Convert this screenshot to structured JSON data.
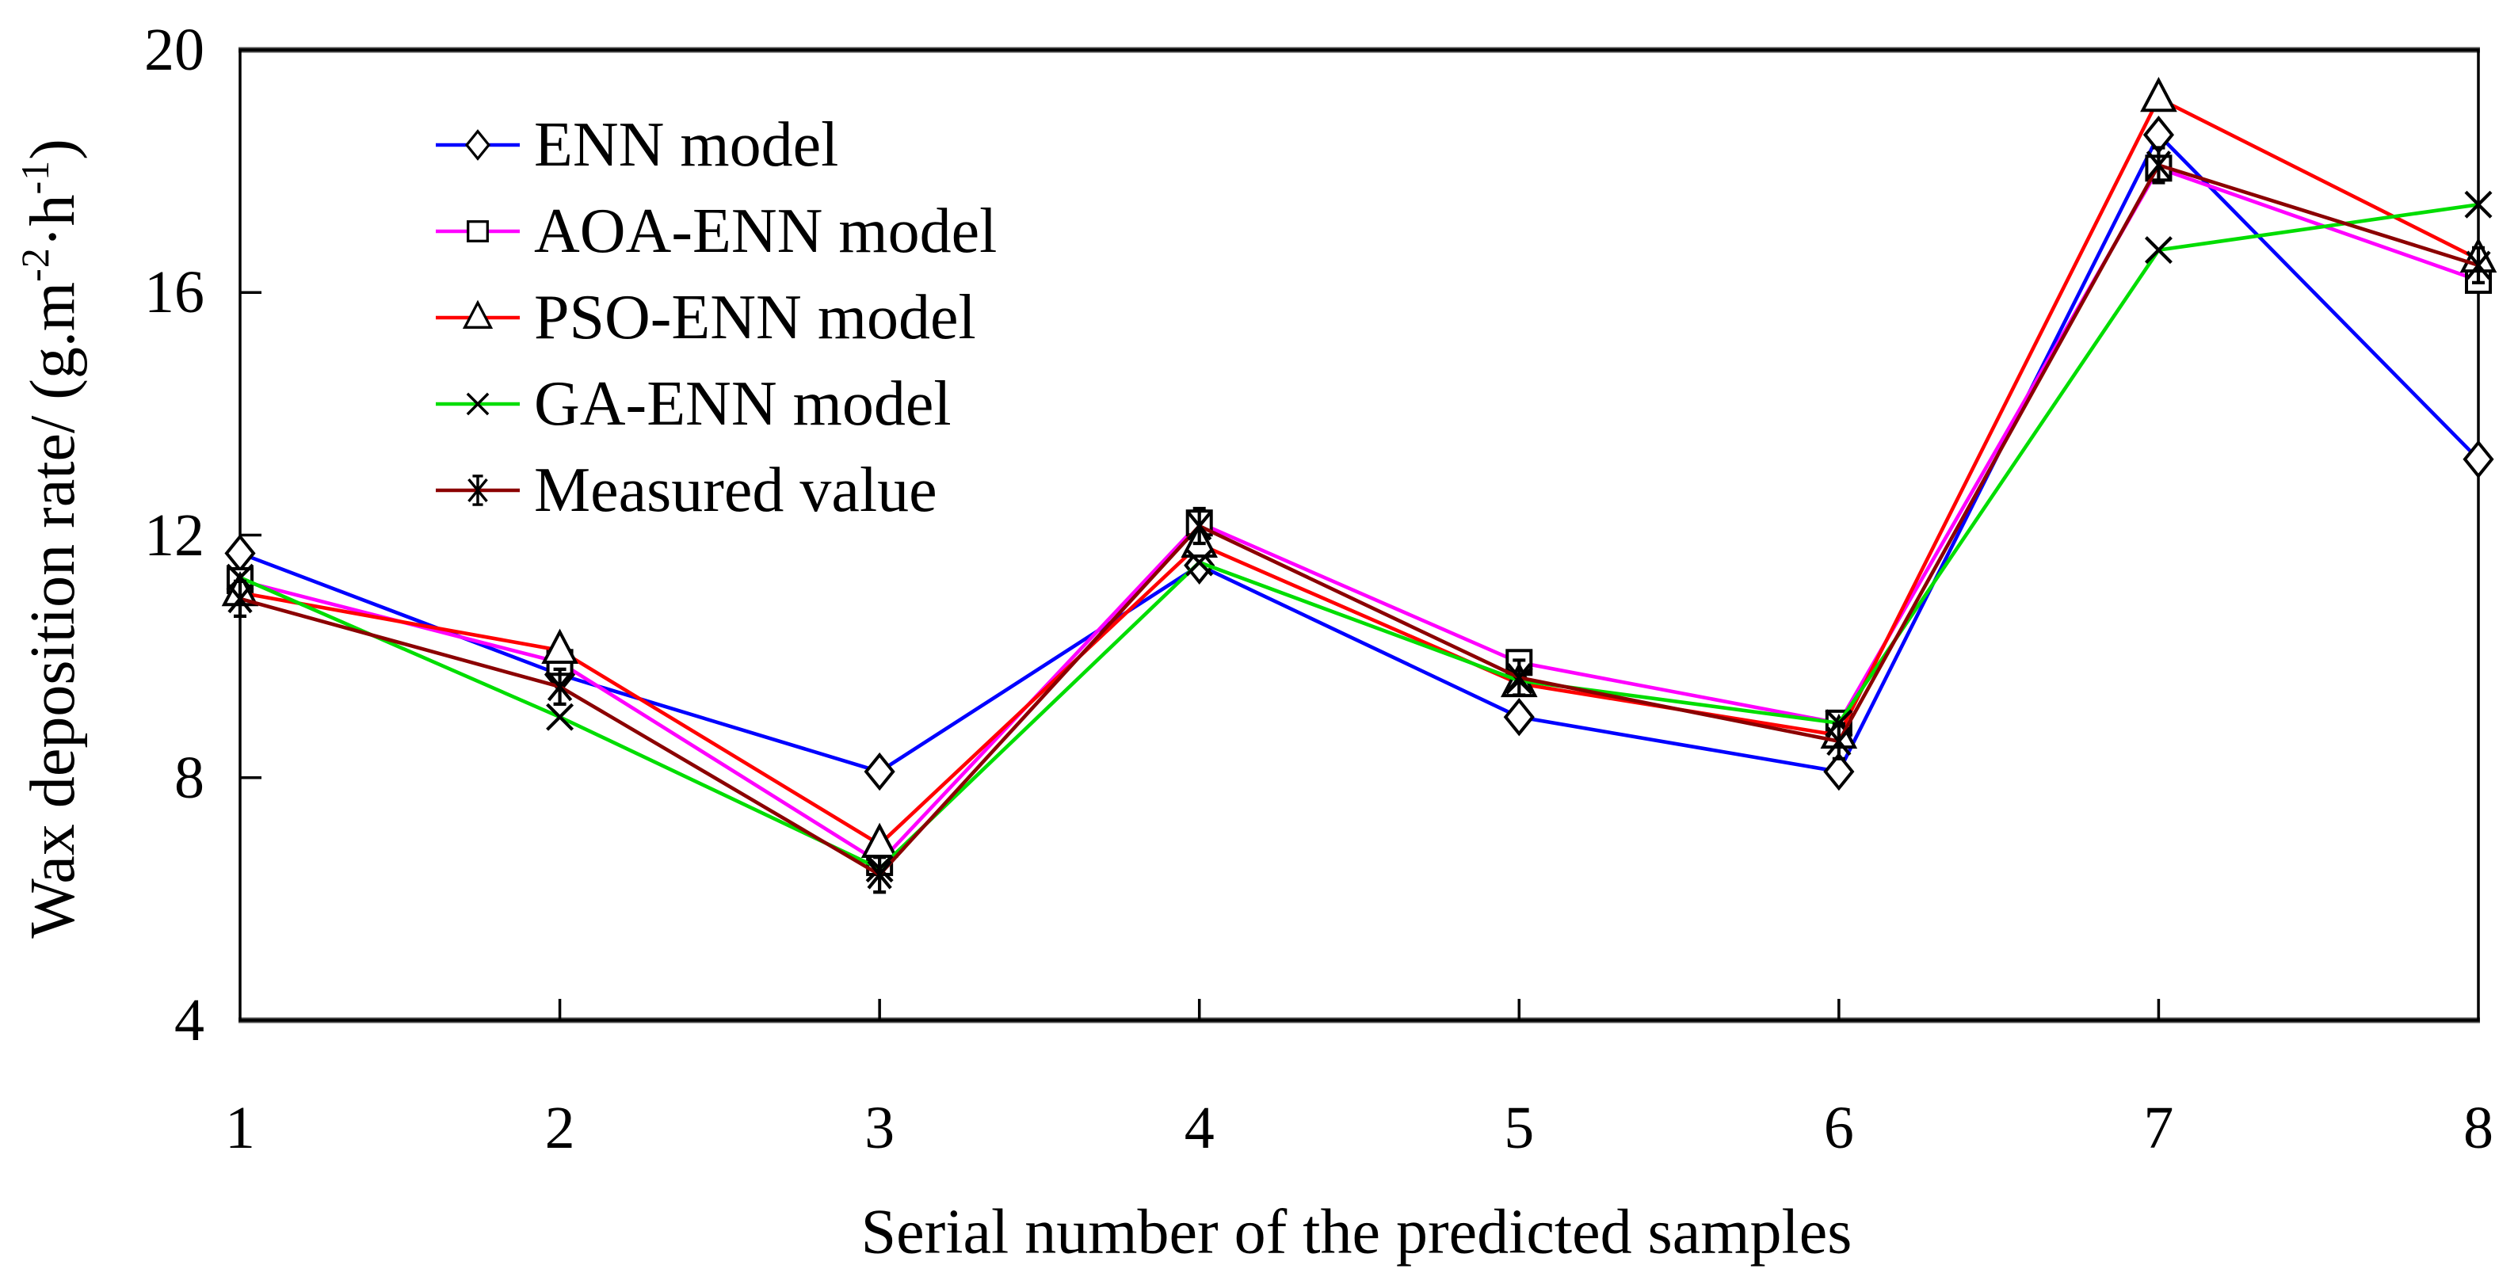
{
  "figure": {
    "xlabel": "Serial number of the predicted samples",
    "ylabel_full": "Wax deposition rate/ (g.m⁻²·h⁻¹)",
    "ylabel_parts": {
      "pre": "Wax deposition rate/ (g.m",
      "sup1": "-2",
      "mid": "·h",
      "sup2": "-1",
      "post": ")"
    }
  },
  "chart_data": {
    "type": "line",
    "title": "",
    "xlabel": "Serial number of the predicted samples",
    "ylabel": "Wax deposition rate/ (g.m^-2·h^-1)",
    "x": [
      1,
      2,
      3,
      4,
      5,
      6,
      7,
      8
    ],
    "x_ticks": [
      1,
      2,
      3,
      4,
      5,
      6,
      7,
      8
    ],
    "y_ticks": [
      20,
      16,
      12,
      8,
      4
    ],
    "xlim": [
      1,
      8
    ],
    "ylim": [
      4,
      20
    ],
    "grid": false,
    "legend_position": "upper-left-inside",
    "frame_color": "#000000",
    "heavy_axis_color": "#4d4d4d",
    "marker_edge_color": "#000000",
    "series": [
      {
        "name": "ENN model",
        "color": "#0000ff",
        "marker": "diamond",
        "values": [
          11.7,
          9.7,
          8.1,
          11.5,
          9.0,
          8.1,
          18.6,
          13.25
        ]
      },
      {
        "name": "AOA-ENN model",
        "color": "#ff00ff",
        "marker": "square",
        "values": [
          11.25,
          9.9,
          6.6,
          12.2,
          9.9,
          8.9,
          18.05,
          16.2
        ]
      },
      {
        "name": "PSO-ENN model",
        "color": "#ff0000",
        "marker": "triangle",
        "values": [
          11.05,
          10.1,
          6.9,
          11.85,
          9.55,
          8.7,
          19.2,
          16.55
        ]
      },
      {
        "name": "GA-ENN model",
        "color": "#00dd00",
        "marker": "x",
        "values": [
          11.3,
          9.0,
          6.5,
          11.55,
          9.6,
          8.9,
          16.7,
          17.45
        ]
      },
      {
        "name": "Measured value",
        "color": "#8b0000",
        "marker": "asterisk",
        "values": [
          10.95,
          9.5,
          6.4,
          12.15,
          9.65,
          8.6,
          18.1,
          16.45
        ]
      }
    ]
  }
}
